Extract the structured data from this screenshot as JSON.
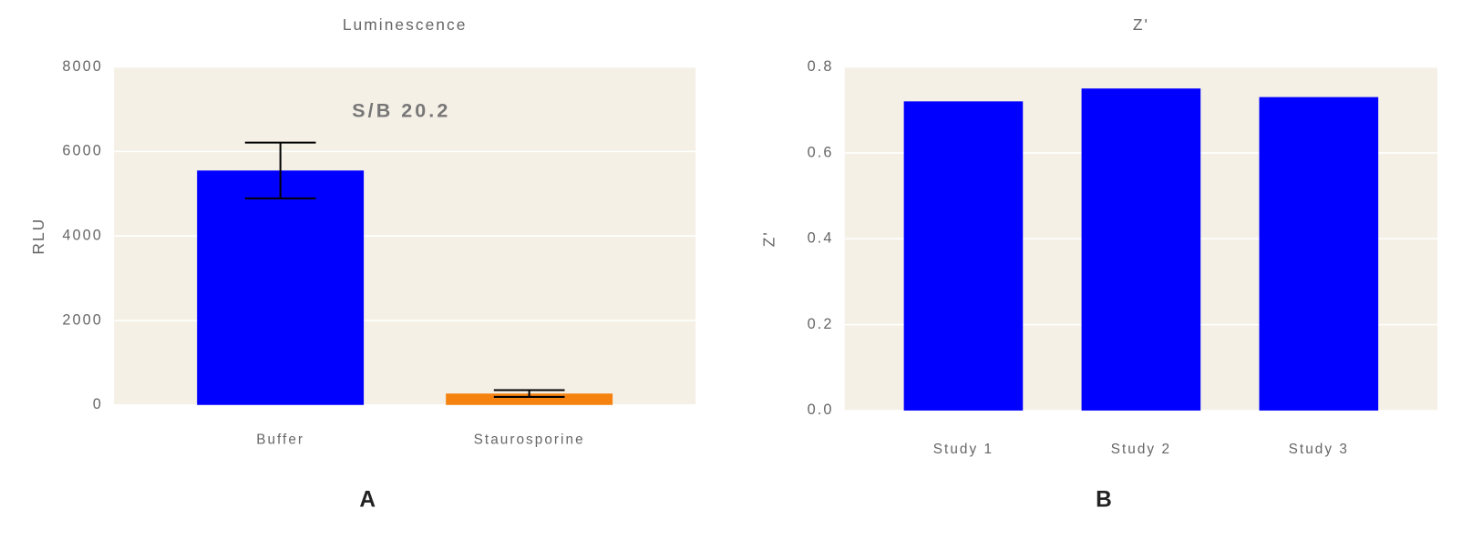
{
  "chart_data": [
    {
      "type": "bar",
      "title": "Luminescence",
      "ylabel": "RLU",
      "panel_label": "A",
      "annotation": "S/B 20.2",
      "categories": [
        "Buffer",
        "Staurosporine"
      ],
      "values": [
        5550,
        270
      ],
      "errors": [
        660,
        80
      ],
      "colors": [
        "#0000ff",
        "#f5820f"
      ],
      "ylim": [
        0,
        8000
      ],
      "yticks": [
        0,
        2000,
        4000,
        6000,
        8000
      ],
      "grid": true
    },
    {
      "type": "bar",
      "title": "Z'",
      "ylabel": "Z'",
      "panel_label": "B",
      "categories": [
        "Study 1",
        "Study 2",
        "Study 3"
      ],
      "values": [
        0.72,
        0.75,
        0.73
      ],
      "colors": [
        "#0000ff",
        "#0000ff",
        "#0000ff"
      ],
      "ylim": [
        0,
        0.8
      ],
      "yticks": [
        {
          "value": 0,
          "label": "0.0"
        },
        0.2,
        0.4,
        0.6,
        0.8
      ],
      "grid": true
    }
  ]
}
